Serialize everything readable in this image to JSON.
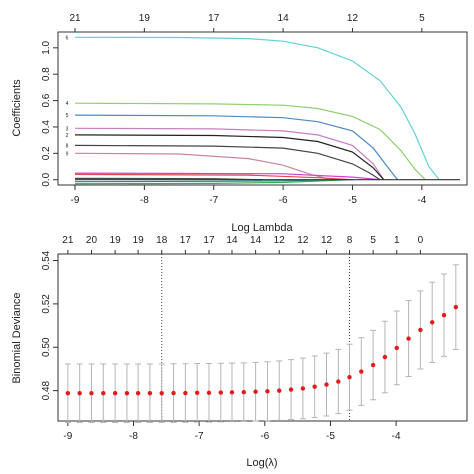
{
  "chart_data": [
    {
      "type": "line",
      "xlabel": "Log Lambda",
      "ylabel": "Coefficients",
      "xlim": [
        -9.0,
        -3.45
      ],
      "ylim": [
        -0.04,
        1.12
      ],
      "x_ticks": [
        -9,
        -8,
        -7,
        -6,
        -5,
        -4
      ],
      "y_ticks": [
        0.0,
        0.2,
        0.4,
        0.6,
        0.8,
        1.0
      ],
      "y_tick_labels": [
        "0.0",
        "0.2",
        "0.4",
        "0.6",
        "0.8",
        "1.0"
      ],
      "top_ticks": [
        {
          "x": -9.0,
          "label": "21"
        },
        {
          "x": -8.0,
          "label": "19"
        },
        {
          "x": -7.0,
          "label": "17"
        },
        {
          "x": -6.0,
          "label": "14"
        },
        {
          "x": -5.0,
          "label": "12"
        },
        {
          "x": -4.0,
          "label": "5"
        }
      ],
      "series": [
        {
          "label": "6",
          "color": "#61d0d8",
          "x": [
            -9.0,
            -7.5,
            -6.5,
            -6.0,
            -5.5,
            -5.0,
            -4.6,
            -4.3,
            -4.1,
            -3.9,
            -3.75
          ],
          "y": [
            1.08,
            1.078,
            1.07,
            1.05,
            1.0,
            0.9,
            0.75,
            0.55,
            0.35,
            0.1,
            0.0
          ]
        },
        {
          "label": "4",
          "color": "#8fd06e",
          "x": [
            -9.0,
            -7.0,
            -6.0,
            -5.5,
            -5.0,
            -4.6,
            -4.3,
            -4.1,
            -3.95
          ],
          "y": [
            0.58,
            0.575,
            0.565,
            0.54,
            0.48,
            0.38,
            0.22,
            0.08,
            0.0
          ]
        },
        {
          "label": "5",
          "color": "#4f88c6",
          "x": [
            -9.0,
            -7.0,
            -6.0,
            -5.5,
            -5.0,
            -4.7,
            -4.5,
            -4.35
          ],
          "y": [
            0.49,
            0.485,
            0.47,
            0.44,
            0.37,
            0.24,
            0.1,
            0.0
          ]
        },
        {
          "label": "3",
          "color": "#c780c0",
          "x": [
            -9.0,
            -7.0,
            -6.0,
            -5.5,
            -5.0,
            -4.7,
            -4.55
          ],
          "y": [
            0.39,
            0.385,
            0.37,
            0.34,
            0.26,
            0.12,
            0.0
          ]
        },
        {
          "label": "2",
          "color": "#222222",
          "x": [
            -9.0,
            -7.0,
            -6.0,
            -5.5,
            -5.0,
            -4.7,
            -4.55
          ],
          "y": [
            0.34,
            0.335,
            0.32,
            0.29,
            0.21,
            0.09,
            0.0
          ]
        },
        {
          "label": "8",
          "color": "#444444",
          "x": [
            -9.0,
            -7.0,
            -6.0,
            -5.5,
            -5.0,
            -4.75,
            -4.6
          ],
          "y": [
            0.26,
            0.255,
            0.24,
            0.2,
            0.12,
            0.05,
            0.0
          ]
        },
        {
          "label": "9",
          "color": "#c9879a",
          "x": [
            -9.0,
            -7.5,
            -6.5,
            -6.0,
            -5.6,
            -5.3
          ],
          "y": [
            0.2,
            0.195,
            0.16,
            0.11,
            0.04,
            0.0
          ]
        },
        {
          "label": "",
          "color": "#d040d0",
          "x": [
            -9.0,
            -6.0,
            -5.0,
            -4.6
          ],
          "y": [
            0.05,
            0.045,
            0.02,
            0.0
          ]
        },
        {
          "label": "",
          "color": "#e04848",
          "x": [
            -9.0,
            -6.5,
            -5.5,
            -5.0
          ],
          "y": [
            0.04,
            0.035,
            0.015,
            0.0
          ]
        },
        {
          "label": "",
          "color": "#2db34a",
          "x": [
            -9.0,
            -7.0,
            -6.0,
            -5.5,
            -5.0
          ],
          "y": [
            -0.03,
            -0.028,
            -0.02,
            -0.01,
            0.0
          ]
        },
        {
          "label": "",
          "color": "#1a8a8a",
          "x": [
            -9.0,
            -7.0,
            -6.0,
            -5.2
          ],
          "y": [
            -0.015,
            -0.012,
            -0.008,
            0.0
          ]
        },
        {
          "label": "",
          "color": "#444444",
          "x": [
            -9.0,
            -7.0,
            -6.3
          ],
          "y": [
            0.01,
            0.008,
            0.0
          ]
        },
        {
          "label": "",
          "color": "#333333",
          "x": [
            -9.0,
            -3.45
          ],
          "y": [
            0.0,
            0.0
          ]
        }
      ]
    },
    {
      "type": "scatter",
      "xlabel": "Log(λ)",
      "ylabel": "Binomial Deviance",
      "xlim": [
        -9.15,
        -2.92
      ],
      "ylim": [
        0.466,
        0.543
      ],
      "x_ticks": [
        -9,
        -8,
        -7,
        -6,
        -5,
        -4
      ],
      "y_ticks": [
        0.48,
        0.5,
        0.52,
        0.54
      ],
      "y_tick_labels": [
        "0.48",
        "0.50",
        "0.52",
        "0.54"
      ],
      "top_ticks": [
        {
          "x": -9.0,
          "label": "21"
        },
        {
          "x": -8.64,
          "label": "20"
        },
        {
          "x": -8.28,
          "label": "19"
        },
        {
          "x": -7.93,
          "label": "19"
        },
        {
          "x": -7.57,
          "label": "18"
        },
        {
          "x": -7.21,
          "label": "17"
        },
        {
          "x": -6.85,
          "label": "17"
        },
        {
          "x": -6.5,
          "label": "14"
        },
        {
          "x": -6.14,
          "label": "14"
        },
        {
          "x": -5.78,
          "label": "12"
        },
        {
          "x": -5.42,
          "label": "12"
        },
        {
          "x": -5.06,
          "label": "12"
        },
        {
          "x": -4.71,
          "label": "8"
        },
        {
          "x": -4.35,
          "label": "5"
        },
        {
          "x": -3.99,
          "label": "1"
        },
        {
          "x": -3.63,
          "label": "0"
        }
      ],
      "points": {
        "x": [
          -9.0,
          -8.82,
          -8.64,
          -8.46,
          -8.28,
          -8.1,
          -7.93,
          -7.75,
          -7.57,
          -7.39,
          -7.21,
          -7.03,
          -6.85,
          -6.67,
          -6.5,
          -6.32,
          -6.14,
          -5.96,
          -5.78,
          -5.6,
          -5.42,
          -5.24,
          -5.06,
          -4.88,
          -4.71,
          -4.53,
          -4.35,
          -4.17,
          -3.99,
          -3.81,
          -3.63,
          -3.45,
          -3.27,
          -3.09
        ],
        "y": [
          0.4788,
          0.4788,
          0.4788,
          0.4788,
          0.4788,
          0.4788,
          0.4788,
          0.4788,
          0.4788,
          0.4789,
          0.4789,
          0.479,
          0.479,
          0.4791,
          0.4792,
          0.4793,
          0.4795,
          0.4797,
          0.48,
          0.4805,
          0.481,
          0.4818,
          0.4828,
          0.4842,
          0.4862,
          0.4888,
          0.4918,
          0.4955,
          0.4997,
          0.504,
          0.508,
          0.5115,
          0.5148,
          0.5185
        ],
        "err": [
          0.0135,
          0.0135,
          0.0135,
          0.0135,
          0.0135,
          0.0135,
          0.0135,
          0.0135,
          0.0135,
          0.0135,
          0.0135,
          0.0135,
          0.0135,
          0.0135,
          0.0135,
          0.0135,
          0.0135,
          0.0136,
          0.0137,
          0.0138,
          0.014,
          0.0142,
          0.0145,
          0.0148,
          0.0152,
          0.0156,
          0.016,
          0.0165,
          0.017,
          0.0175,
          0.018,
          0.0185,
          0.019,
          0.0195
        ]
      },
      "vlines": [
        -7.57,
        -4.71
      ],
      "colors": {
        "point": "#e31a1c",
        "errorbar": "#b5b5b5",
        "vline": "#444444"
      }
    }
  ]
}
